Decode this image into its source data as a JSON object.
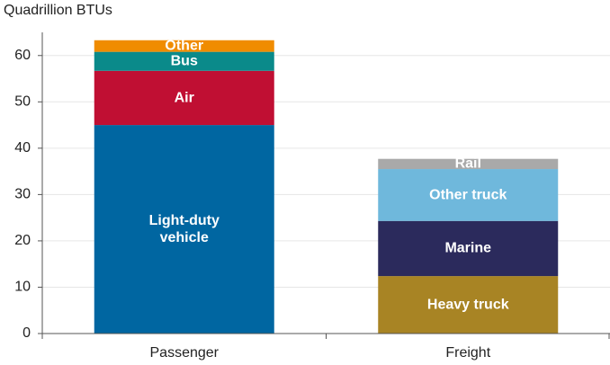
{
  "chart_data": {
    "type": "stacked_bar",
    "y_axis_label": "Quadrillion BTUs",
    "categories": [
      "Passenger",
      "Freight"
    ],
    "series": [
      {
        "name": "Light-duty vehicle",
        "color": "#0066a1",
        "values": [
          45,
          null
        ]
      },
      {
        "name": "Air",
        "color": "#c00f33",
        "values": [
          11.7,
          null
        ]
      },
      {
        "name": "Bus",
        "color": "#0a8a8a",
        "values": [
          4.1,
          null
        ]
      },
      {
        "name": "Other",
        "color": "#f08c00",
        "values": [
          2.5,
          null
        ]
      },
      {
        "name": "Heavy truck",
        "color": "#a88424",
        "values": [
          null,
          12.4
        ]
      },
      {
        "name": "Marine",
        "color": "#2b2a5c",
        "values": [
          null,
          11.9
        ]
      },
      {
        "name": "Other truck",
        "color": "#6fb8dc",
        "values": [
          null,
          11.2
        ]
      },
      {
        "name": "Rail",
        "color": "#a9a9a9",
        "values": [
          null,
          2.2
        ]
      }
    ],
    "ylim": [
      0,
      65
    ],
    "yticks": [
      0,
      10,
      20,
      30,
      40,
      50,
      60
    ],
    "grid": true
  }
}
